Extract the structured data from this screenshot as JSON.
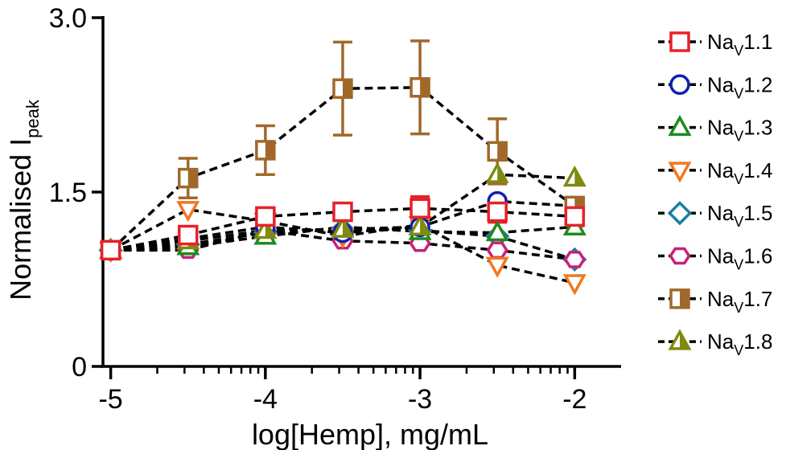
{
  "chart_data": {
    "type": "line",
    "xlabel": "log[Hemp], mg/mL",
    "ylabel": {
      "main": "Normalised I",
      "sub": "peak"
    },
    "xlim": [
      -5.05,
      -1.7
    ],
    "ylim": [
      0,
      3.0
    ],
    "xticks": [
      -5,
      -4,
      -3,
      -2
    ],
    "xtick_labels": [
      "-5",
      "-4",
      "-3",
      "-2"
    ],
    "yticks": [
      0,
      1.5,
      3.0
    ],
    "ytick_labels": [
      "0",
      "1.5",
      "3.0"
    ],
    "x_minor_ticks": "log-decade",
    "grid": false,
    "legend": "right",
    "x": [
      -5,
      -4.5,
      -4,
      -3.5,
      -3,
      -2.5,
      -2
    ],
    "series": [
      {
        "name": {
          "base": "Na",
          "sub": "V",
          "suffix": "1.1"
        },
        "marker": "square",
        "fill": "none",
        "color": "#e8202a",
        "values": [
          1.0,
          1.13,
          1.29,
          1.33,
          1.36,
          1.33,
          1.29
        ],
        "err": [
          0,
          0,
          0,
          0.04,
          0.1,
          0.09,
          0.08
        ]
      },
      {
        "name": {
          "base": "Na",
          "sub": "V",
          "suffix": "1.2"
        },
        "marker": "circle",
        "fill": "none",
        "color": "#1020b0",
        "values": [
          1.0,
          1.1,
          1.2,
          1.15,
          1.2,
          1.42,
          1.38
        ],
        "err": [
          0,
          0,
          0,
          0,
          0,
          0,
          0
        ]
      },
      {
        "name": {
          "base": "Na",
          "sub": "V",
          "suffix": "1.3"
        },
        "marker": "triangle-up",
        "fill": "none",
        "color": "#1f8a1f",
        "values": [
          1.0,
          1.03,
          1.12,
          1.2,
          1.16,
          1.15,
          1.2
        ],
        "err": [
          0,
          0,
          0,
          0,
          0,
          0,
          0
        ]
      },
      {
        "name": {
          "base": "Na",
          "sub": "V",
          "suffix": "1.4"
        },
        "marker": "triangle-down",
        "fill": "none",
        "color": "#f07820",
        "values": [
          1.0,
          1.35,
          1.25,
          1.12,
          1.22,
          0.87,
          0.72
        ],
        "err": [
          0,
          0,
          0,
          0,
          0,
          0,
          0
        ]
      },
      {
        "name": {
          "base": "Na",
          "sub": "V",
          "suffix": "1.5"
        },
        "marker": "diamond",
        "fill": "none",
        "color": "#1a7fa0",
        "values": [
          1.0,
          1.05,
          1.15,
          1.18,
          1.17,
          1.12,
          0.92
        ],
        "err": [
          0,
          0,
          0,
          0,
          0,
          0,
          0
        ]
      },
      {
        "name": {
          "base": "Na",
          "sub": "V",
          "suffix": "1.6"
        },
        "marker": "hexagon",
        "fill": "none",
        "color": "#c8207a",
        "values": [
          1.0,
          1.0,
          1.17,
          1.08,
          1.06,
          1.0,
          0.92
        ],
        "err": [
          0,
          0,
          0,
          0,
          0,
          0,
          0
        ]
      },
      {
        "name": {
          "base": "Na",
          "sub": "V",
          "suffix": "1.7"
        },
        "marker": "square-half",
        "fill": "half",
        "color": "#a0692a",
        "values": [
          1.0,
          1.62,
          1.86,
          2.39,
          2.4,
          1.85,
          1.38
        ],
        "err": [
          0,
          0.17,
          0.21,
          0.4,
          0.4,
          0.28,
          0
        ]
      },
      {
        "name": {
          "base": "Na",
          "sub": "V",
          "suffix": "1.8"
        },
        "marker": "triangle-up-half",
        "fill": "half",
        "color": "#808a10",
        "values": [
          1.0,
          1.08,
          1.17,
          1.18,
          1.2,
          1.65,
          1.62
        ],
        "err": [
          0,
          0,
          0,
          0,
          0,
          0,
          0
        ]
      }
    ]
  }
}
